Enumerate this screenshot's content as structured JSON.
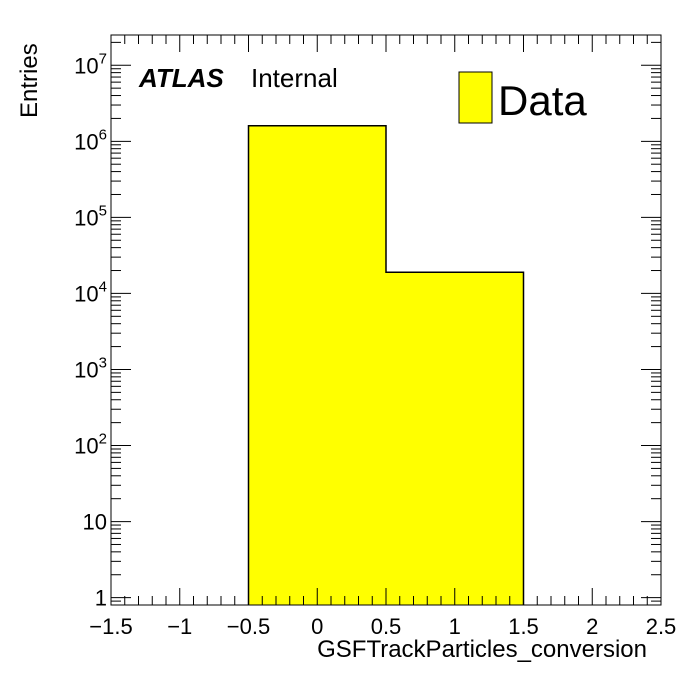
{
  "chart_data": {
    "type": "bar",
    "title": "",
    "xlabel": "GSFTrackParticles_conversion",
    "ylabel": "Entries",
    "xlim": [
      -1.5,
      2.5
    ],
    "ylim": [
      0.8,
      25000000
    ],
    "yscale": "log",
    "grid": false,
    "legend_position": "top-right",
    "bins": [
      {
        "low": -0.5,
        "high": 0.5,
        "value": 1600000
      },
      {
        "low": 0.5,
        "high": 1.5,
        "value": 19000
      }
    ],
    "series": [
      {
        "name": "Data",
        "color": "#ffff00",
        "edge_color": "#000000"
      }
    ],
    "x_ticks": [
      {
        "value": -1.5,
        "label": "−1.5"
      },
      {
        "value": -1,
        "label": "−1"
      },
      {
        "value": -0.5,
        "label": "−0.5"
      },
      {
        "value": 0,
        "label": "0"
      },
      {
        "value": 0.5,
        "label": "0.5"
      },
      {
        "value": 1,
        "label": "1"
      },
      {
        "value": 1.5,
        "label": "1.5"
      },
      {
        "value": 2,
        "label": "2"
      },
      {
        "value": 2.5,
        "label": "2.5"
      }
    ],
    "y_ticks": [
      {
        "value": 1,
        "base": "1",
        "exp": ""
      },
      {
        "value": 10,
        "base": "10",
        "exp": ""
      },
      {
        "value": 100,
        "base": "10",
        "exp": "2"
      },
      {
        "value": 1000,
        "base": "10",
        "exp": "3"
      },
      {
        "value": 10000,
        "base": "10",
        "exp": "4"
      },
      {
        "value": 100000,
        "base": "10",
        "exp": "5"
      },
      {
        "value": 1000000,
        "base": "10",
        "exp": "6"
      },
      {
        "value": 10000000,
        "base": "10",
        "exp": "7"
      }
    ],
    "annotations": {
      "experiment": "ATLAS",
      "status": "Internal"
    },
    "legend": [
      {
        "label": "Data",
        "color": "#ffff00"
      }
    ]
  }
}
